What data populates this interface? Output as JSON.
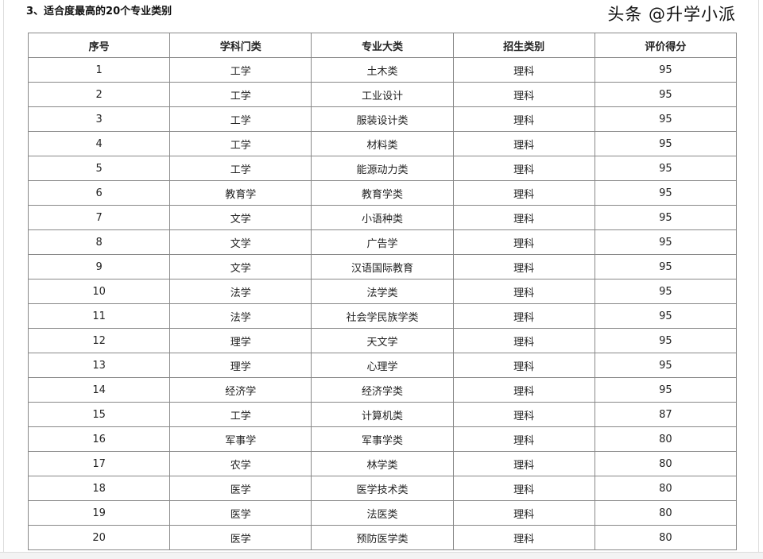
{
  "title": "3、适合度最高的20个专业类别",
  "headers": [
    "序号",
    "学科门类",
    "专业大类",
    "招生类别",
    "评价得分"
  ],
  "rows": [
    [
      "1",
      "工学",
      "土木类",
      "理科",
      "95"
    ],
    [
      "2",
      "工学",
      "工业设计",
      "理科",
      "95"
    ],
    [
      "3",
      "工学",
      "服装设计类",
      "理科",
      "95"
    ],
    [
      "4",
      "工学",
      "材料类",
      "理科",
      "95"
    ],
    [
      "5",
      "工学",
      "能源动力类",
      "理科",
      "95"
    ],
    [
      "6",
      "教育学",
      "教育学类",
      "理科",
      "95"
    ],
    [
      "7",
      "文学",
      "小语种类",
      "理科",
      "95"
    ],
    [
      "8",
      "文学",
      "广告学",
      "理科",
      "95"
    ],
    [
      "9",
      "文学",
      "汉语国际教育",
      "理科",
      "95"
    ],
    [
      "10",
      "法学",
      "法学类",
      "理科",
      "95"
    ],
    [
      "11",
      "法学",
      "社会学民族学类",
      "理科",
      "95"
    ],
    [
      "12",
      "理学",
      "天文学",
      "理科",
      "95"
    ],
    [
      "13",
      "理学",
      "心理学",
      "理科",
      "95"
    ],
    [
      "14",
      "经济学",
      "经济学类",
      "理科",
      "95"
    ],
    [
      "15",
      "工学",
      "计算机类",
      "理科",
      "87"
    ],
    [
      "16",
      "军事学",
      "军事学类",
      "理科",
      "80"
    ],
    [
      "17",
      "农学",
      "林学类",
      "理科",
      "80"
    ],
    [
      "18",
      "医学",
      "医学技术类",
      "理科",
      "80"
    ],
    [
      "19",
      "医学",
      "法医类",
      "理科",
      "80"
    ],
    [
      "20",
      "医学",
      "预防医学类",
      "理科",
      "80"
    ]
  ],
  "watermark": "头条 @升学小派"
}
